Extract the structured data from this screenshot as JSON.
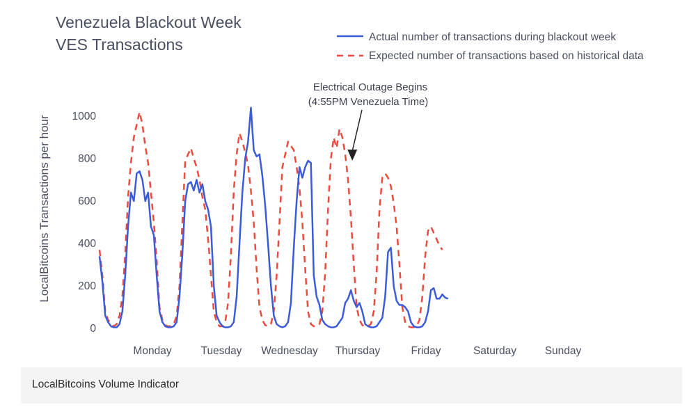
{
  "caption": "LocalBitcoins Volume Indicator",
  "chart_data": {
    "type": "line",
    "title": [
      "Venezuela Blackout Week",
      "VES Transactions"
    ],
    "ylabel": "LocalBitcoins Transactions per hour",
    "ylim": [
      0,
      1100
    ],
    "yticks": [
      0,
      200,
      400,
      600,
      800,
      1000
    ],
    "day_labels": [
      "Monday",
      "Tuesday",
      "Wednesday",
      "Thursday",
      "Friday",
      "Saturday",
      "Sunday"
    ],
    "x_range": [
      0,
      168
    ],
    "annotation": {
      "lines": [
        "Electrical Outage Begins",
        "(4:55PM Venezuela Time)"
      ],
      "x": 88.5,
      "y": 790
    },
    "series": [
      {
        "name": "Actual number of transactions during blackout week",
        "color": "#3b5bdb",
        "dash": "solid",
        "points": [
          [
            0,
            340
          ],
          [
            1,
            220
          ],
          [
            2,
            60
          ],
          [
            3,
            30
          ],
          [
            4,
            10
          ],
          [
            5,
            5
          ],
          [
            6,
            5
          ],
          [
            7,
            20
          ],
          [
            8,
            80
          ],
          [
            9,
            250
          ],
          [
            10,
            480
          ],
          [
            11,
            640
          ],
          [
            12,
            600
          ],
          [
            13,
            730
          ],
          [
            14,
            740
          ],
          [
            15,
            700
          ],
          [
            16,
            600
          ],
          [
            17,
            640
          ],
          [
            18,
            480
          ],
          [
            19,
            440
          ],
          [
            20,
            250
          ],
          [
            21,
            80
          ],
          [
            22,
            30
          ],
          [
            23,
            10
          ],
          [
            24,
            5
          ],
          [
            25,
            5
          ],
          [
            26,
            10
          ],
          [
            27,
            30
          ],
          [
            28,
            150
          ],
          [
            29,
            350
          ],
          [
            30,
            600
          ],
          [
            31,
            680
          ],
          [
            32,
            690
          ],
          [
            33,
            650
          ],
          [
            34,
            700
          ],
          [
            35,
            640
          ],
          [
            36,
            680
          ],
          [
            37,
            600
          ],
          [
            38,
            560
          ],
          [
            39,
            480
          ],
          [
            40,
            200
          ],
          [
            41,
            60
          ],
          [
            42,
            30
          ],
          [
            43,
            10
          ],
          [
            44,
            5
          ],
          [
            45,
            5
          ],
          [
            46,
            10
          ],
          [
            47,
            30
          ],
          [
            48,
            150
          ],
          [
            49,
            400
          ],
          [
            50,
            640
          ],
          [
            51,
            800
          ],
          [
            52,
            880
          ],
          [
            53,
            1040
          ],
          [
            54,
            840
          ],
          [
            55,
            810
          ],
          [
            56,
            820
          ],
          [
            57,
            720
          ],
          [
            58,
            580
          ],
          [
            59,
            400
          ],
          [
            60,
            200
          ],
          [
            61,
            60
          ],
          [
            62,
            20
          ],
          [
            63,
            10
          ],
          [
            64,
            5
          ],
          [
            65,
            10
          ],
          [
            66,
            30
          ],
          [
            67,
            120
          ],
          [
            68,
            380
          ],
          [
            69,
            600
          ],
          [
            70,
            760
          ],
          [
            71,
            710
          ],
          [
            72,
            760
          ],
          [
            73,
            790
          ],
          [
            74,
            780
          ],
          [
            75,
            250
          ],
          [
            76,
            150
          ],
          [
            77,
            110
          ],
          [
            78,
            40
          ],
          [
            79,
            20
          ],
          [
            80,
            10
          ],
          [
            81,
            5
          ],
          [
            82,
            5
          ],
          [
            83,
            10
          ],
          [
            84,
            30
          ],
          [
            85,
            50
          ],
          [
            86,
            120
          ],
          [
            87,
            140
          ],
          [
            88,
            180
          ],
          [
            89,
            130
          ],
          [
            90,
            100
          ],
          [
            91,
            120
          ],
          [
            92,
            80
          ],
          [
            93,
            20
          ],
          [
            94,
            10
          ],
          [
            95,
            5
          ],
          [
            96,
            5
          ],
          [
            97,
            10
          ],
          [
            98,
            30
          ],
          [
            99,
            50
          ],
          [
            100,
            150
          ],
          [
            101,
            360
          ],
          [
            102,
            380
          ],
          [
            103,
            200
          ],
          [
            104,
            130
          ],
          [
            105,
            110
          ],
          [
            106,
            110
          ],
          [
            107,
            100
          ],
          [
            108,
            80
          ],
          [
            109,
            30
          ],
          [
            110,
            10
          ],
          [
            111,
            5
          ],
          [
            112,
            5
          ],
          [
            113,
            10
          ],
          [
            114,
            30
          ],
          [
            115,
            80
          ],
          [
            116,
            180
          ],
          [
            117,
            190
          ],
          [
            118,
            140
          ],
          [
            119,
            140
          ],
          [
            120,
            160
          ],
          [
            121,
            145
          ],
          [
            122,
            140
          ]
        ]
      },
      {
        "name": "Expected number of transactions based on historical data",
        "color": "#ee4a3e",
        "dash": "dashed",
        "points": [
          [
            0,
            370
          ],
          [
            1,
            250
          ],
          [
            2,
            80
          ],
          [
            3,
            40
          ],
          [
            4,
            20
          ],
          [
            5,
            10
          ],
          [
            6,
            20
          ],
          [
            7,
            60
          ],
          [
            8,
            150
          ],
          [
            9,
            350
          ],
          [
            10,
            620
          ],
          [
            11,
            780
          ],
          [
            12,
            900
          ],
          [
            13,
            960
          ],
          [
            14,
            1020
          ],
          [
            15,
            960
          ],
          [
            16,
            860
          ],
          [
            17,
            780
          ],
          [
            18,
            640
          ],
          [
            19,
            500
          ],
          [
            20,
            320
          ],
          [
            21,
            100
          ],
          [
            22,
            40
          ],
          [
            23,
            15
          ],
          [
            24,
            10
          ],
          [
            25,
            10
          ],
          [
            26,
            20
          ],
          [
            27,
            60
          ],
          [
            28,
            200
          ],
          [
            29,
            500
          ],
          [
            30,
            790
          ],
          [
            31,
            820
          ],
          [
            32,
            850
          ],
          [
            33,
            800
          ],
          [
            34,
            760
          ],
          [
            35,
            700
          ],
          [
            36,
            620
          ],
          [
            37,
            560
          ],
          [
            38,
            420
          ],
          [
            39,
            250
          ],
          [
            40,
            80
          ],
          [
            41,
            30
          ],
          [
            42,
            10
          ],
          [
            43,
            10
          ],
          [
            44,
            30
          ],
          [
            45,
            120
          ],
          [
            46,
            350
          ],
          [
            47,
            650
          ],
          [
            48,
            820
          ],
          [
            49,
            920
          ],
          [
            50,
            880
          ],
          [
            51,
            830
          ],
          [
            52,
            770
          ],
          [
            53,
            650
          ],
          [
            54,
            500
          ],
          [
            55,
            280
          ],
          [
            56,
            100
          ],
          [
            57,
            40
          ],
          [
            58,
            15
          ],
          [
            59,
            10
          ],
          [
            60,
            20
          ],
          [
            61,
            80
          ],
          [
            62,
            250
          ],
          [
            63,
            500
          ],
          [
            64,
            760
          ],
          [
            65,
            820
          ],
          [
            66,
            880
          ],
          [
            67,
            860
          ],
          [
            68,
            840
          ],
          [
            69,
            760
          ],
          [
            70,
            660
          ],
          [
            71,
            500
          ],
          [
            72,
            280
          ],
          [
            73,
            80
          ],
          [
            74,
            20
          ],
          [
            75,
            10
          ],
          [
            76,
            10
          ],
          [
            77,
            20
          ],
          [
            78,
            80
          ],
          [
            79,
            260
          ],
          [
            80,
            560
          ],
          [
            81,
            800
          ],
          [
            82,
            900
          ],
          [
            83,
            850
          ],
          [
            84,
            940
          ],
          [
            85,
            900
          ],
          [
            86,
            820
          ],
          [
            87,
            700
          ],
          [
            88,
            520
          ],
          [
            89,
            300
          ],
          [
            90,
            100
          ],
          [
            91,
            40
          ],
          [
            92,
            15
          ],
          [
            93,
            10
          ],
          [
            94,
            10
          ],
          [
            95,
            20
          ],
          [
            96,
            80
          ],
          [
            97,
            260
          ],
          [
            98,
            560
          ],
          [
            99,
            710
          ],
          [
            100,
            730
          ],
          [
            101,
            710
          ],
          [
            102,
            670
          ],
          [
            103,
            590
          ],
          [
            104,
            480
          ],
          [
            105,
            300
          ],
          [
            106,
            100
          ],
          [
            107,
            30
          ],
          [
            108,
            10
          ],
          [
            109,
            5
          ],
          [
            110,
            5
          ],
          [
            111,
            10
          ],
          [
            112,
            40
          ],
          [
            113,
            150
          ],
          [
            114,
            340
          ],
          [
            115,
            460
          ],
          [
            116,
            480
          ],
          [
            117,
            450
          ],
          [
            118,
            420
          ],
          [
            119,
            390
          ],
          [
            120,
            370
          ]
        ]
      }
    ]
  }
}
